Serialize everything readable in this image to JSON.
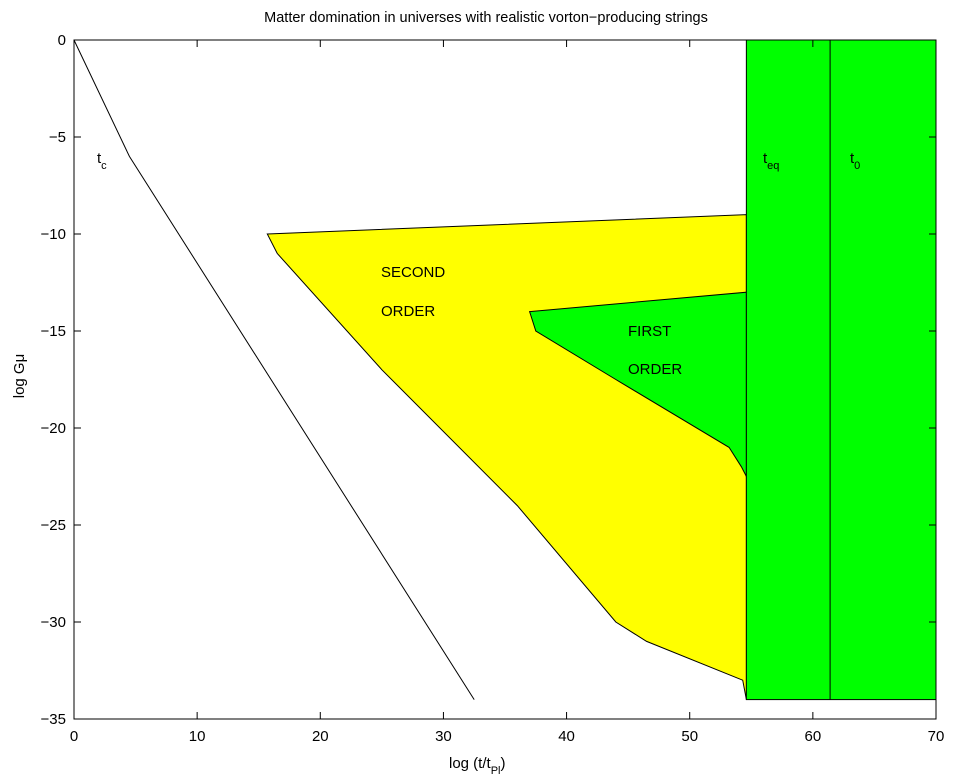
{
  "chart_data": {
    "type": "area",
    "title": "Matter domination in universes with realistic vorton−producing strings",
    "xlabel": {
      "main": "log (t/t",
      "sub": "Pl",
      "close": ")"
    },
    "ylabel": "log Gμ",
    "xlim": [
      0,
      70
    ],
    "ylim": [
      -35,
      0
    ],
    "xticks": [
      0,
      10,
      20,
      30,
      40,
      50,
      60,
      70
    ],
    "yticks": [
      0,
      -5,
      -10,
      -15,
      -20,
      -25,
      -30,
      -35
    ],
    "xtick_labels": [
      "0",
      "10",
      "20",
      "30",
      "40",
      "50",
      "60",
      "70"
    ],
    "ytick_labels": [
      "0",
      "−5",
      "−10",
      "−15",
      "−20",
      "−25",
      "−30",
      "−35"
    ],
    "grid": false,
    "colors": {
      "yellow_region": "#ffff00",
      "green_region": "#00ff00",
      "line": "#000000"
    },
    "tc_line": {
      "label": "t",
      "label_sub": "c",
      "points": [
        [
          0,
          0
        ],
        [
          4.5,
          -6
        ],
        [
          32.5,
          -34
        ]
      ]
    },
    "second_order_region": {
      "label_lines": [
        "SECOND",
        "ORDER"
      ],
      "color": "#ffff00",
      "points": [
        [
          15.7,
          -10
        ],
        [
          54.6,
          -9
        ],
        [
          54.6,
          -34
        ],
        [
          54.3,
          -33
        ],
        [
          46.5,
          -31
        ],
        [
          44.0,
          -30
        ],
        [
          36.0,
          -24
        ],
        [
          25.0,
          -17
        ],
        [
          16.5,
          -11
        ],
        [
          15.7,
          -10
        ]
      ]
    },
    "first_order_region": {
      "label_lines": [
        "FIRST",
        "ORDER"
      ],
      "color": "#00ff00",
      "points": [
        [
          37.0,
          -14
        ],
        [
          54.6,
          -13
        ],
        [
          54.6,
          -22.5
        ],
        [
          54.2,
          -22
        ],
        [
          53.2,
          -21
        ],
        [
          44.0,
          -17.5
        ],
        [
          37.5,
          -15
        ],
        [
          37.0,
          -14
        ]
      ]
    },
    "late_region": {
      "color": "#00ff00",
      "x_range": [
        54.6,
        70
      ],
      "y_range": [
        -34,
        0
      ]
    },
    "t_eq": {
      "label": "t",
      "label_sub": "eq",
      "x": 61.4
    },
    "t_0": {
      "label": "t",
      "label_sub": "0"
    }
  }
}
